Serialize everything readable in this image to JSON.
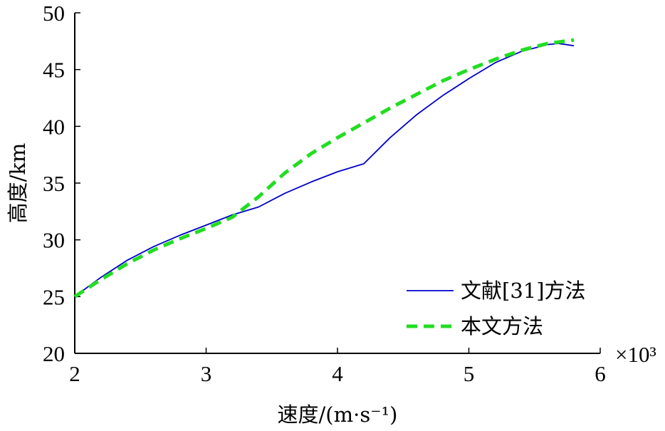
{
  "chart_data": {
    "type": "line",
    "xlabel": "速度/(m·s⁻¹)",
    "ylabel": "高度/km",
    "x_multiplier_label": "×10³",
    "xlim": [
      2,
      6
    ],
    "ylim": [
      20,
      50
    ],
    "xticks": [
      2,
      3,
      4,
      5,
      6
    ],
    "yticks": [
      20,
      25,
      30,
      35,
      40,
      45,
      50
    ],
    "grid": false,
    "legend_position": "bottom-right",
    "series": [
      {
        "name": "文献[31]方法",
        "color": "#0000cc",
        "style": "solid",
        "x": [
          2.0,
          2.2,
          2.4,
          2.6,
          2.8,
          3.0,
          3.2,
          3.4,
          3.6,
          3.8,
          4.0,
          4.2,
          4.4,
          4.6,
          4.8,
          5.0,
          5.2,
          5.4,
          5.6,
          5.68,
          5.8
        ],
        "y": [
          25.0,
          26.7,
          28.2,
          29.4,
          30.4,
          31.3,
          32.2,
          32.9,
          34.1,
          35.1,
          36.0,
          36.7,
          39.0,
          41.0,
          42.7,
          44.2,
          45.6,
          46.6,
          47.2,
          47.3,
          47.1
        ]
      },
      {
        "name": "本文方法",
        "color": "#22dd22",
        "style": "dashed",
        "x": [
          2.0,
          2.2,
          2.4,
          2.6,
          2.8,
          3.0,
          3.2,
          3.4,
          3.6,
          3.8,
          4.0,
          4.2,
          4.4,
          4.6,
          4.8,
          5.0,
          5.2,
          5.4,
          5.6,
          5.8
        ],
        "y": [
          25.0,
          26.5,
          27.9,
          29.1,
          30.1,
          31.0,
          32.0,
          33.8,
          35.9,
          37.6,
          39.0,
          40.3,
          41.6,
          42.8,
          44.0,
          45.0,
          45.9,
          46.7,
          47.3,
          47.6
        ]
      }
    ]
  }
}
